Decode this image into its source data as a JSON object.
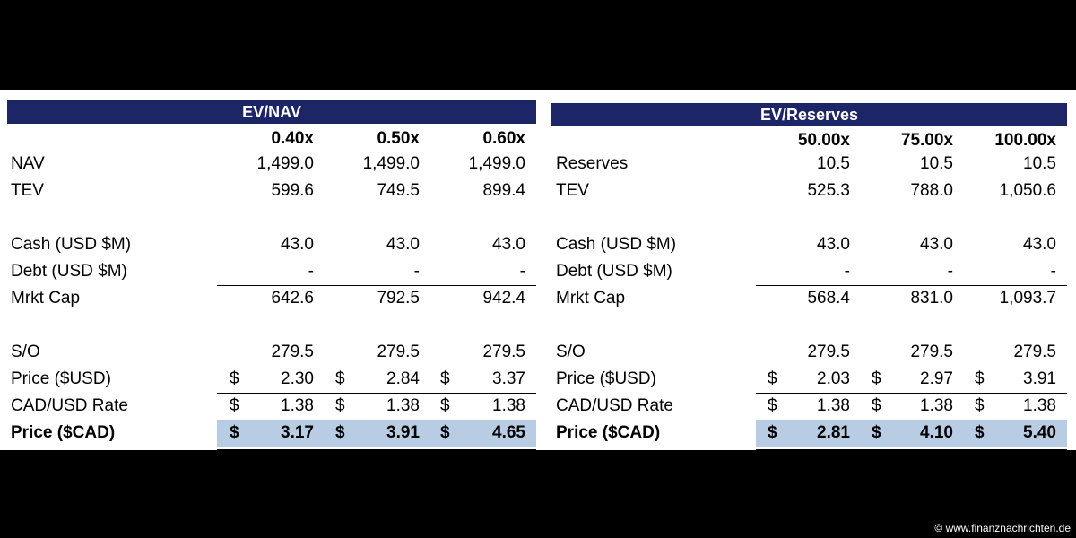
{
  "tables": [
    {
      "title": "EV/NAV",
      "columns": [
        "0.40x",
        "0.50x",
        "0.60x"
      ],
      "groups": [
        [
          {
            "label": "NAV",
            "cells": [
              "1,499.0",
              "1,499.0",
              "1,499.0"
            ]
          },
          {
            "label": "TEV",
            "cells": [
              "599.6",
              "749.5",
              "899.4"
            ]
          }
        ],
        [
          {
            "label": "Cash (USD $M)",
            "cells": [
              "43.0",
              "43.0",
              "43.0"
            ]
          },
          {
            "label": "Debt (USD $M)",
            "cells": [
              "-",
              "-",
              "-"
            ]
          },
          {
            "label": "Mrkt Cap",
            "cells": [
              "642.6",
              "792.5",
              "942.4"
            ]
          }
        ],
        [
          {
            "label": "S/O",
            "cells": [
              "279.5",
              "279.5",
              "279.5"
            ]
          },
          {
            "label": "Price ($USD)",
            "cells": [
              {
                "currency": "$",
                "amount": "2.30"
              },
              {
                "currency": "$",
                "amount": "2.84"
              },
              {
                "currency": "$",
                "amount": "3.37"
              }
            ]
          },
          {
            "label": "CAD/USD Rate",
            "cells": [
              {
                "currency": "$",
                "amount": "1.38"
              },
              {
                "currency": "$",
                "amount": "1.38"
              },
              {
                "currency": "$",
                "amount": "1.38"
              }
            ]
          },
          {
            "label": "Price ($CAD)",
            "cells": [
              {
                "currency": "$",
                "amount": "3.17"
              },
              {
                "currency": "$",
                "amount": "3.91"
              },
              {
                "currency": "$",
                "amount": "4.65"
              }
            ]
          }
        ]
      ]
    },
    {
      "title": "EV/Reserves",
      "columns": [
        "50.00x",
        "75.00x",
        "100.00x"
      ],
      "groups": [
        [
          {
            "label": "Reserves",
            "cells": [
              "10.5",
              "10.5",
              "10.5"
            ]
          },
          {
            "label": "TEV",
            "cells": [
              "525.3",
              "788.0",
              "1,050.6"
            ]
          }
        ],
        [
          {
            "label": "Cash (USD $M)",
            "cells": [
              "43.0",
              "43.0",
              "43.0"
            ]
          },
          {
            "label": "Debt (USD $M)",
            "cells": [
              "-",
              "-",
              "-"
            ]
          },
          {
            "label": "Mrkt Cap",
            "cells": [
              "568.4",
              "831.0",
              "1,093.7"
            ]
          }
        ],
        [
          {
            "label": "S/O",
            "cells": [
              "279.5",
              "279.5",
              "279.5"
            ]
          },
          {
            "label": "Price ($USD)",
            "cells": [
              {
                "currency": "$",
                "amount": "2.03"
              },
              {
                "currency": "$",
                "amount": "2.97"
              },
              {
                "currency": "$",
                "amount": "3.91"
              }
            ]
          },
          {
            "label": "CAD/USD Rate",
            "cells": [
              {
                "currency": "$",
                "amount": "1.38"
              },
              {
                "currency": "$",
                "amount": "1.38"
              },
              {
                "currency": "$",
                "amount": "1.38"
              }
            ]
          },
          {
            "label": "Price ($CAD)",
            "cells": [
              {
                "currency": "$",
                "amount": "2.81"
              },
              {
                "currency": "$",
                "amount": "4.10"
              },
              {
                "currency": "$",
                "amount": "5.40"
              }
            ]
          }
        ]
      ]
    }
  ],
  "watermark": "© www.finanznachrichten.de"
}
